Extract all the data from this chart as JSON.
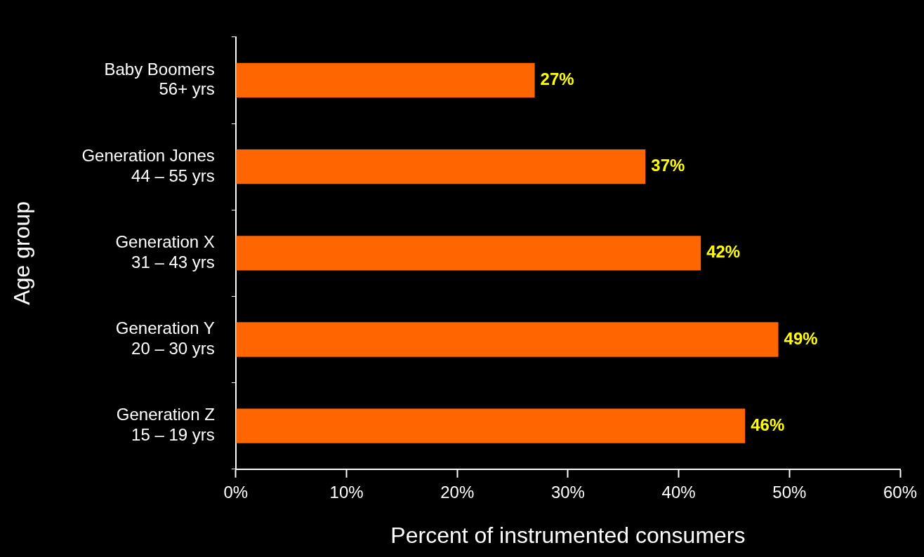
{
  "chart_data": {
    "type": "bar",
    "orientation": "horizontal",
    "xlabel": "Percent of instrumented consumers",
    "ylabel": "Age group",
    "categories": [
      "Baby Boomers\n56+ yrs",
      "Generation Jones\n44 – 55 yrs",
      "Generation X\n31 – 43 yrs",
      "Generation Y\n20 – 30 yrs",
      "Generation Z\n15 – 19 yrs"
    ],
    "values": [
      27,
      37,
      42,
      49,
      46
    ],
    "color": "#ff6600",
    "value_labels": [
      "27%",
      "37%",
      "42%",
      "49%",
      "46%"
    ],
    "xlim": [
      0,
      60
    ],
    "xticks": [
      {
        "value": 0,
        "label": "0%"
      },
      {
        "value": 10,
        "label": "10%"
      },
      {
        "value": 20,
        "label": "20%"
      },
      {
        "value": 30,
        "label": "30%"
      },
      {
        "value": 40,
        "label": "40%"
      },
      {
        "value": 50,
        "label": "50%"
      },
      {
        "value": 60,
        "label": "60%"
      }
    ]
  }
}
